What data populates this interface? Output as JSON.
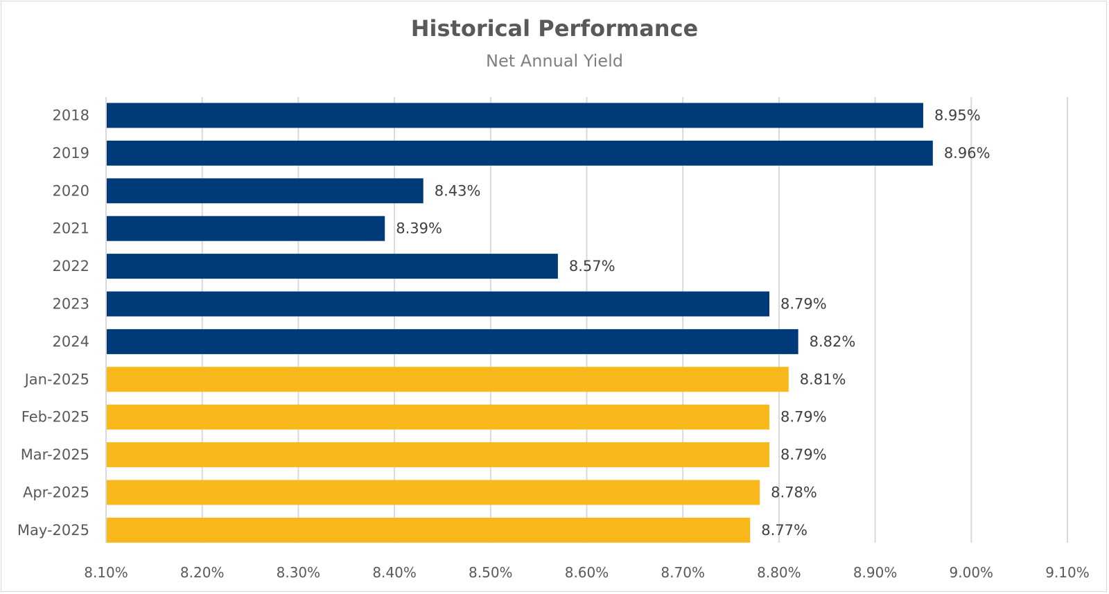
{
  "chart_data": {
    "type": "bar",
    "orientation": "horizontal",
    "title": "Historical Performance",
    "subtitle": "Net Annual Yield",
    "xlabel": "",
    "ylabel": "",
    "xlim": [
      8.1,
      9.1
    ],
    "x_ticks": [
      "8.10%",
      "8.20%",
      "8.30%",
      "8.40%",
      "8.50%",
      "8.60%",
      "8.70%",
      "8.80%",
      "8.90%",
      "9.00%",
      "9.10%"
    ],
    "x_tick_values": [
      8.1,
      8.2,
      8.3,
      8.4,
      8.5,
      8.6,
      8.7,
      8.8,
      8.9,
      9.0,
      9.1
    ],
    "grid": "vertical",
    "legend": "none",
    "categories": [
      "2018",
      "2019",
      "2020",
      "2021",
      "2022",
      "2023",
      "2024",
      "Jan-2025",
      "Feb-2025",
      "Mar-2025",
      "Apr-2025",
      "May-2025"
    ],
    "values": [
      8.95,
      8.96,
      8.43,
      8.39,
      8.57,
      8.79,
      8.82,
      8.81,
      8.79,
      8.79,
      8.78,
      8.77
    ],
    "data_labels": [
      "8.95%",
      "8.96%",
      "8.43%",
      "8.39%",
      "8.57%",
      "8.79%",
      "8.82%",
      "8.81%",
      "8.79%",
      "8.79%",
      "8.78%",
      "8.77%"
    ],
    "bar_groups": [
      "annual",
      "annual",
      "annual",
      "annual",
      "annual",
      "annual",
      "annual",
      "monthly",
      "monthly",
      "monthly",
      "monthly",
      "monthly"
    ],
    "colors": {
      "annual": "#003a78",
      "monthly": "#f8b81b",
      "grid": "#d9d9d9",
      "tick_text": "#595959",
      "data_label_text": "#404040"
    }
  }
}
